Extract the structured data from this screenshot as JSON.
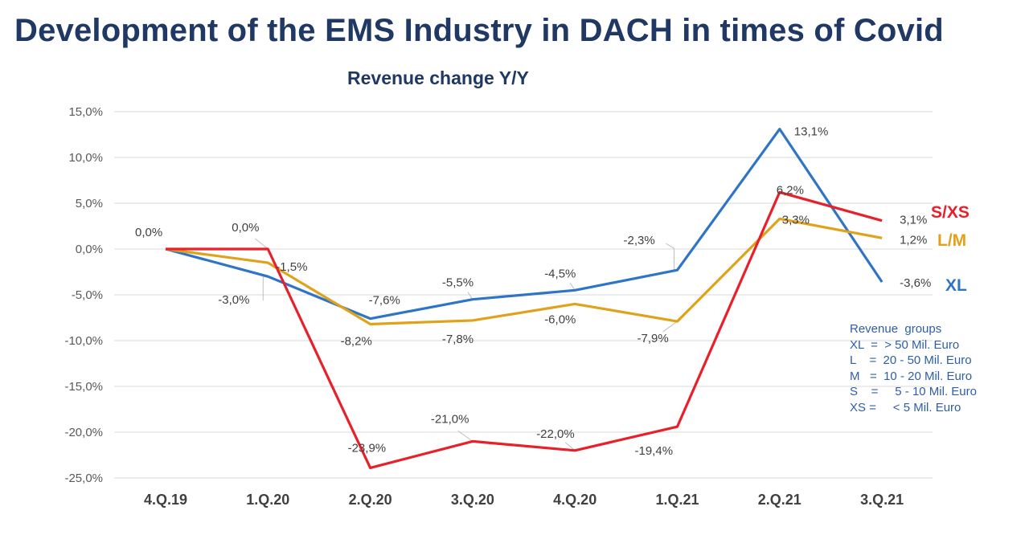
{
  "title": "Development of the EMS Industry in DACH in times of Covid",
  "subtitle": "Revenue change Y/Y",
  "chart_data": {
    "type": "line",
    "title": "Development of the EMS Industry in DACH in times of Covid",
    "subtitle": "Revenue change Y/Y",
    "categories": [
      "4.Q.19",
      "1.Q.20",
      "2.Q.20",
      "3.Q.20",
      "4.Q.20",
      "1.Q.21",
      "2.Q.21",
      "3.Q.21"
    ],
    "yticks": [
      "15,0%",
      "10,0%",
      "5,0%",
      "0,0%",
      "-5,0%",
      "-10,0%",
      "-15,0%",
      "-20,0%",
      "-25,0%"
    ],
    "ylim": [
      -25,
      15
    ],
    "grid": "horizontal",
    "series": [
      {
        "name": "XL",
        "color": "#2e75c8",
        "values": [
          0.0,
          -3.0,
          -7.6,
          -5.5,
          -4.5,
          -2.3,
          13.1,
          -3.6
        ],
        "labels": [
          "0,0%",
          "-3,0%",
          "-7,6%",
          "-5,5%",
          "-4,5%",
          "-2,3%",
          "13,1%",
          "-3,6%"
        ]
      },
      {
        "name": "L/M",
        "color": "#e0a21a",
        "values": [
          0.0,
          -1.5,
          -8.2,
          -7.8,
          -6.0,
          -7.9,
          3.3,
          1.2
        ],
        "labels": [
          "",
          "-1,5%",
          "-8,2%",
          "-7,8%",
          "-6,0%",
          "-7,9%",
          "3,3%",
          "1,2%"
        ]
      },
      {
        "name": "S/XS",
        "color": "#e8202a",
        "values": [
          0.0,
          0.0,
          -23.9,
          -21.0,
          -22.0,
          -19.4,
          6.2,
          3.1
        ],
        "labels": [
          "",
          "0,0%",
          "-23,9%",
          "-21,0%",
          "-22,0%",
          "-19,4%",
          "6,2%",
          "3,1%"
        ]
      }
    ],
    "legend_note": [
      "Revenue  groups",
      "XL  =  > 50 Mil. Euro",
      "L    =  20 - 50 Mil. Euro",
      "M   =  10 - 20 Mil. Euro",
      "S    =     5 - 10 Mil. Euro",
      "XS =     < 5 Mil. Euro"
    ]
  }
}
